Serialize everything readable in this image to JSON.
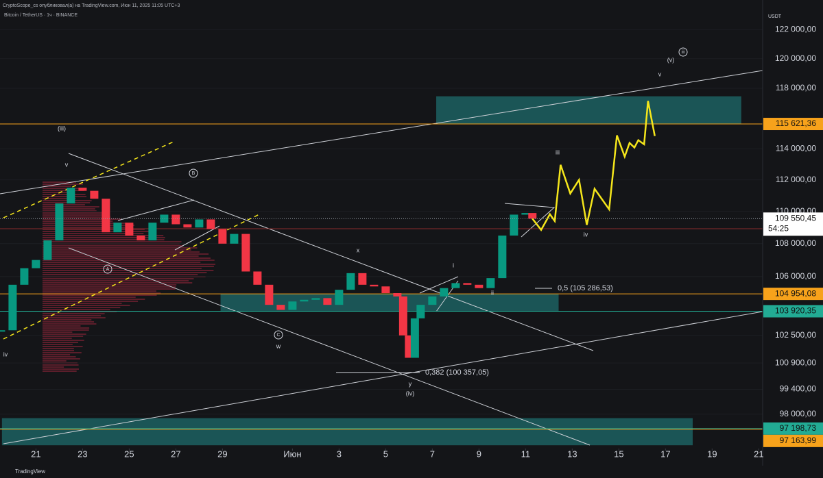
{
  "header": {
    "publisher": "CryptoScope_cs опубликовал(а) на TradingView.com, Июн 11, 2025 11:05 UTC+3",
    "symbol": "Bitcoin / TetherUS · 1ч · BINANCE",
    "footer": "TradingView"
  },
  "chart_data": {
    "type": "candlestick",
    "currency": "USDT",
    "log_scale": true,
    "up_color": "#089981",
    "down_color": "#f23645",
    "xlim": [
      "2025-05-19T11:00",
      "2025-06-21T04:00"
    ],
    "xticks": [
      {
        "value": "2025-05-21T00:00",
        "label": "21"
      },
      {
        "value": "2025-05-23T00:00",
        "label": "23"
      },
      {
        "value": "2025-05-25T00:00",
        "label": "25"
      },
      {
        "value": "2025-05-27T00:00",
        "label": "27"
      },
      {
        "value": "2025-05-29T00:00",
        "label": "29"
      },
      {
        "value": "2025-06-01T00:00",
        "label": "Июн"
      },
      {
        "value": "2025-06-03T00:00",
        "label": "3"
      },
      {
        "value": "2025-06-05T00:00",
        "label": "5"
      },
      {
        "value": "2025-06-07T00:00",
        "label": "7"
      },
      {
        "value": "2025-06-09T00:00",
        "label": "9"
      },
      {
        "value": "2025-06-11T00:00",
        "label": "11"
      },
      {
        "value": "2025-06-13T00:00",
        "label": "13"
      },
      {
        "value": "2025-06-15T00:00",
        "label": "15"
      },
      {
        "value": "2025-06-17T00:00",
        "label": "17"
      },
      {
        "value": "2025-06-19T00:00",
        "label": "19"
      },
      {
        "value": "2025-06-21T00:00",
        "label": "21"
      }
    ],
    "ylim": [
      96100,
      123600
    ],
    "yticks": [
      {
        "value": 122000,
        "label": "122 000,00"
      },
      {
        "value": 120000,
        "label": "120 000,00"
      },
      {
        "value": 118000,
        "label": "118 000,00"
      },
      {
        "value": 114000,
        "label": "114 000,00"
      },
      {
        "value": 112000,
        "label": "112 000,00"
      },
      {
        "value": 110000,
        "label": "110 000,00"
      },
      {
        "value": 108000,
        "label": "108 000,00"
      },
      {
        "value": 106000,
        "label": "106 000,00"
      },
      {
        "value": 102500,
        "label": "102 500,00"
      },
      {
        "value": 100900,
        "label": "100 900,00"
      },
      {
        "value": 99400,
        "label": "99 400,00"
      },
      {
        "value": 98000,
        "label": "98 000,00"
      }
    ],
    "price": {
      "x": [
        "2025-05-19T12:00",
        "2025-05-20T00:00",
        "2025-05-20T12:00",
        "2025-05-21T00:00",
        "2025-05-21T12:00",
        "2025-05-22T00:00",
        "2025-05-22T12:00",
        "2025-05-23T00:00",
        "2025-05-23T12:00",
        "2025-05-24T00:00",
        "2025-05-24T12:00",
        "2025-05-25T00:00",
        "2025-05-25T12:00",
        "2025-05-26T00:00",
        "2025-05-26T12:00",
        "2025-05-27T00:00",
        "2025-05-27T12:00",
        "2025-05-28T00:00",
        "2025-05-28T12:00",
        "2025-05-29T00:00",
        "2025-05-29T12:00",
        "2025-05-30T00:00",
        "2025-05-30T12:00",
        "2025-05-31T00:00",
        "2025-05-31T12:00",
        "2025-06-01T00:00",
        "2025-06-01T12:00",
        "2025-06-02T00:00",
        "2025-06-02T12:00",
        "2025-06-03T00:00",
        "2025-06-03T12:00",
        "2025-06-04T00:00",
        "2025-06-04T12:00",
        "2025-06-05T00:00",
        "2025-06-05T12:00",
        "2025-06-05T18:00",
        "2025-06-06T00:00",
        "2025-06-06T06:00",
        "2025-06-06T12:00",
        "2025-06-07T00:00",
        "2025-06-07T12:00",
        "2025-06-08T00:00",
        "2025-06-08T12:00",
        "2025-06-09T00:00",
        "2025-06-09T12:00",
        "2025-06-10T00:00",
        "2025-06-10T12:00",
        "2025-06-11T00:00",
        "2025-06-11T07:00"
      ],
      "values": [
        102800,
        105500,
        106500,
        107000,
        108200,
        110500,
        111500,
        111300,
        110800,
        108700,
        109300,
        108500,
        108200,
        109300,
        109800,
        109200,
        109000,
        109500,
        108900,
        108000,
        108600,
        106300,
        105500,
        104300,
        104000,
        104500,
        104600,
        104700,
        104300,
        105200,
        106200,
        105500,
        105400,
        105000,
        104800,
        102500,
        101200,
        103500,
        104300,
        104800,
        105300,
        105600,
        105500,
        105300,
        105900,
        108500,
        109800,
        109900,
        109550
      ]
    },
    "projection": {
      "color": "#f5e61b",
      "x": [
        "2025-06-11T07:00",
        "2025-06-11T16:00",
        "2025-06-12T01:00",
        "2025-06-12T06:00",
        "2025-06-12T12:00",
        "2025-06-12T22:00",
        "2025-06-13T07:00",
        "2025-06-13T15:00",
        "2025-06-13T23:00",
        "2025-06-14T14:00",
        "2025-06-14T22:00",
        "2025-06-15T06:00",
        "2025-06-15T11:00",
        "2025-06-15T16:00",
        "2025-06-15T20:00",
        "2025-06-16T02:00",
        "2025-06-16T06:00",
        "2025-06-16T13:00"
      ],
      "values": [
        109550,
        108850,
        109830,
        109400,
        112960,
        111130,
        112000,
        109160,
        111430,
        110130,
        114870,
        113490,
        114380,
        114080,
        114560,
        114290,
        117150,
        114830
      ]
    },
    "zones": [
      {
        "from": "2025-06-07T04:00",
        "to": "2025-06-20T06:00",
        "low": 115621.36,
        "high": 117460
      },
      {
        "from": "2025-05-28T22:00",
        "to": "2025-06-12T10:00",
        "low": 103920.35,
        "high": 104954.08
      },
      {
        "from": "2025-05-19T13:00",
        "to": "2025-06-18T04:00",
        "low": 96280,
        "high": 97780
      }
    ],
    "levels": [
      {
        "value": 115621.36,
        "label": "115 621,36",
        "color": "#f7a21b"
      },
      {
        "value": 104954.08,
        "label": "104 954,08",
        "color": "#f7a21b"
      },
      {
        "value": 103920.35,
        "label": "103 920,35",
        "color": "#22ab94"
      },
      {
        "value": 97198.73,
        "label": "97 198,73",
        "color": "#22ab94"
      },
      {
        "value": 97163.99,
        "label": "97 163,99",
        "color": "#f7a21b"
      }
    ],
    "last": {
      "value": 109550.45,
      "label": "109 550,45",
      "countdown": "54:25"
    },
    "fibs": [
      {
        "value": 105286.53,
        "label": "0,5 (105 286,53)"
      },
      {
        "value": 100357.05,
        "label": "0,382 (100 357,05)"
      }
    ],
    "annotations": [
      "(iii)",
      "v",
      "B",
      "A",
      "C",
      "w",
      "x",
      "y",
      "(iv)",
      "i",
      "ii",
      "iii",
      "iv",
      "v",
      "(v)",
      "iii",
      "iv"
    ]
  }
}
